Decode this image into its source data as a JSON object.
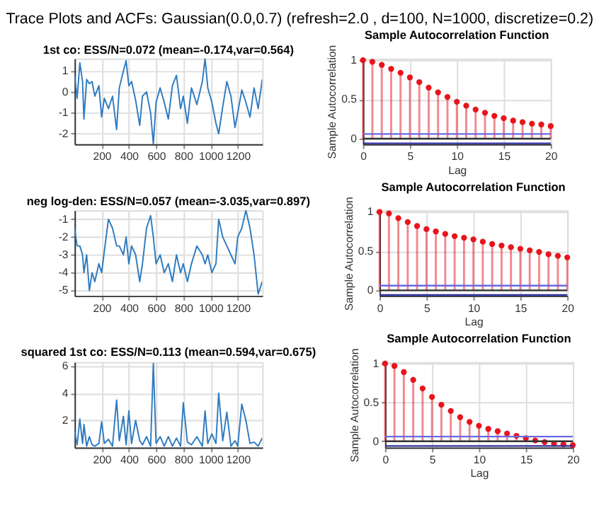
{
  "chart_data": [
    {
      "type": "other",
      "title": "Trace Plots and ACFs: Gaussian(0.0,0.7) (refresh=2.0 , d=100, N=1000, discretize=0.2)"
    },
    {
      "type": "line",
      "title": "1st co: ESS/N=0.072 (mean=-0.174,var=0.564)",
      "xlim": [
        1,
        1380
      ],
      "xticks": [
        200,
        400,
        600,
        800,
        1000,
        1200
      ],
      "ylim": [
        -2.5,
        1.6
      ],
      "yticks": [
        -2,
        -1,
        0,
        1
      ],
      "grid": true,
      "x": [
        1,
        20,
        40,
        60,
        70,
        90,
        110,
        130,
        150,
        180,
        200,
        220,
        250,
        280,
        310,
        330,
        360,
        380,
        400,
        420,
        450,
        480,
        500,
        530,
        560,
        580,
        600,
        630,
        660,
        690,
        720,
        750,
        780,
        800,
        830,
        860,
        900,
        940,
        960,
        980,
        1010,
        1040,
        1060,
        1090,
        1120,
        1150,
        1180,
        1200,
        1230,
        1260,
        1290,
        1320,
        1350,
        1380
      ],
      "series": [
        {
          "color": "#2f7bbf",
          "values": [
            0.8,
            -0.3,
            1.4,
            0.5,
            -1.3,
            0.6,
            0.4,
            0.5,
            -0.2,
            0.3,
            -1.2,
            -0.3,
            -0.8,
            -0.2,
            -1.8,
            0.2,
            1.0,
            1.5,
            0.3,
            0.5,
            -0.4,
            -1.6,
            -0.2,
            0.0,
            -1.0,
            -2.5,
            -0.5,
            0.2,
            -0.5,
            -1.3,
            0.3,
            0.8,
            -0.8,
            -0.2,
            -1.5,
            0.2,
            -0.6,
            0.5,
            1.6,
            0.2,
            -0.5,
            -1.5,
            -2.0,
            -0.7,
            0.5,
            -0.2,
            -1.7,
            -1.0,
            0.1,
            -0.5,
            -1.2,
            0.2,
            -0.8,
            0.6
          ]
        }
      ]
    },
    {
      "type": "lollipop",
      "title": "Sample Autocorrelation Function",
      "xlabel": "Lag",
      "ylabel": "Sample Autocorrelation",
      "xlim": [
        0,
        20
      ],
      "xticks": [
        0,
        5,
        10,
        15,
        20
      ],
      "ylim": [
        -0.07,
        1.02
      ],
      "yticks": [
        0,
        0.5,
        1
      ],
      "grid": true,
      "marker": "circle",
      "x": [
        0,
        1,
        2,
        3,
        4,
        5,
        6,
        7,
        8,
        9,
        10,
        11,
        12,
        13,
        14,
        15,
        16,
        17,
        18,
        19,
        20
      ],
      "series": [
        {
          "color": "#e8141c",
          "values": [
            1,
            0.98,
            0.94,
            0.89,
            0.84,
            0.78,
            0.72,
            0.65,
            0.59,
            0.53,
            0.47,
            0.42,
            0.37,
            0.33,
            0.29,
            0.26,
            0.23,
            0.21,
            0.19,
            0.18,
            0.16
          ]
        }
      ],
      "ref_lines": [
        {
          "axis": "y",
          "value": 0.06,
          "color": "#6a6ae0"
        },
        {
          "axis": "y",
          "value": -0.06,
          "color": "#3030a0"
        },
        {
          "axis": "y",
          "value": 0,
          "color": "#333333"
        }
      ]
    },
    {
      "type": "line",
      "title": "neg log-den: ESS/N=0.057 (mean=-3.035,var=0.897)",
      "xlim": [
        1,
        1380
      ],
      "xticks": [
        200,
        400,
        600,
        800,
        1000,
        1200
      ],
      "ylim": [
        -5.3,
        -0.5
      ],
      "yticks": [
        -5,
        -4,
        -3,
        -2,
        -1
      ],
      "grid": true,
      "x": [
        1,
        20,
        40,
        60,
        70,
        90,
        110,
        130,
        150,
        180,
        200,
        220,
        250,
        280,
        310,
        330,
        360,
        380,
        400,
        420,
        450,
        480,
        500,
        530,
        560,
        580,
        600,
        630,
        660,
        690,
        720,
        750,
        780,
        800,
        830,
        860,
        900,
        940,
        960,
        980,
        1010,
        1040,
        1060,
        1090,
        1120,
        1150,
        1180,
        1200,
        1230,
        1260,
        1290,
        1320,
        1350,
        1380
      ],
      "series": [
        {
          "color": "#2f7bbf",
          "values": [
            -1.5,
            -2.5,
            -2.5,
            -3.0,
            -4.0,
            -3.0,
            -5.0,
            -4.0,
            -4.5,
            -3.5,
            -4.0,
            -2.8,
            -1.0,
            -1.5,
            -2.5,
            -2.5,
            -3.0,
            -2.0,
            -3.5,
            -2.5,
            -3.0,
            -4.5,
            -3.5,
            -1.5,
            -0.8,
            -2.0,
            -3.5,
            -3.0,
            -4.0,
            -3.5,
            -4.5,
            -3.0,
            -4.0,
            -3.5,
            -4.5,
            -3.5,
            -2.5,
            -3.0,
            -3.5,
            -3.0,
            -4.0,
            -3.5,
            -1.0,
            -2.0,
            -2.5,
            -3.0,
            -3.5,
            -2.0,
            -1.5,
            -0.5,
            -1.5,
            -3.0,
            -5.2,
            -4.5
          ]
        }
      ]
    },
    {
      "type": "lollipop",
      "title": "Sample Autocorrelation Function",
      "xlabel": "Lag",
      "ylabel": "Sample Autocorrelation",
      "xlim": [
        0,
        20
      ],
      "xticks": [
        0,
        5,
        10,
        15,
        20
      ],
      "ylim": [
        -0.07,
        1.02
      ],
      "yticks": [
        0,
        0.5,
        1
      ],
      "grid": true,
      "marker": "circle",
      "x": [
        0,
        1,
        2,
        3,
        4,
        5,
        6,
        7,
        8,
        9,
        10,
        11,
        12,
        13,
        14,
        15,
        16,
        17,
        18,
        19,
        20
      ],
      "series": [
        {
          "color": "#e8141c",
          "values": [
            1,
            0.98,
            0.92,
            0.87,
            0.82,
            0.78,
            0.75,
            0.72,
            0.69,
            0.67,
            0.65,
            0.62,
            0.59,
            0.57,
            0.55,
            0.53,
            0.51,
            0.49,
            0.46,
            0.44,
            0.42
          ]
        }
      ],
      "ref_lines": [
        {
          "axis": "y",
          "value": 0.06,
          "color": "#6a6ae0"
        },
        {
          "axis": "y",
          "value": -0.06,
          "color": "#3030a0"
        },
        {
          "axis": "y",
          "value": 0,
          "color": "#333333"
        }
      ]
    },
    {
      "type": "line",
      "title": "squared 1st co: ESS/N=0.113 (mean=0.594,var=0.675)",
      "xlim": [
        1,
        1380
      ],
      "xticks": [
        200,
        400,
        600,
        800,
        1000,
        1200
      ],
      "ylim": [
        0,
        6.3
      ],
      "yticks": [
        2,
        4,
        6
      ],
      "grid": true,
      "x": [
        1,
        20,
        40,
        60,
        70,
        90,
        110,
        130,
        150,
        180,
        200,
        220,
        250,
        280,
        310,
        330,
        360,
        380,
        400,
        420,
        450,
        480,
        500,
        530,
        560,
        580,
        600,
        630,
        660,
        690,
        720,
        750,
        780,
        800,
        830,
        860,
        900,
        940,
        960,
        980,
        1010,
        1040,
        1060,
        1090,
        1120,
        1150,
        1180,
        1200,
        1230,
        1260,
        1290,
        1320,
        1350,
        1380
      ],
      "series": [
        {
          "color": "#2f7bbf",
          "values": [
            1.2,
            0.2,
            2.1,
            0.3,
            1.7,
            0.1,
            0.8,
            0.2,
            0.1,
            0.3,
            1.9,
            0.3,
            0.6,
            0.1,
            3.5,
            0.5,
            2.3,
            0.2,
            2.7,
            0.3,
            2.0,
            0.5,
            0.2,
            0.8,
            0.1,
            6.2,
            0.3,
            0.8,
            0.1,
            0.8,
            0.1,
            0.7,
            0.1,
            3.3,
            0.4,
            0.2,
            0.8,
            0.1,
            2.7,
            0.3,
            1.0,
            0.3,
            4.0,
            0.5,
            2.6,
            0.1,
            0.5,
            0.1,
            3.2,
            2.0,
            0.3,
            0.4,
            0.1,
            0.7
          ]
        }
      ]
    },
    {
      "type": "lollipop",
      "title": "Sample Autocorrelation Function",
      "xlabel": "Lag",
      "ylabel": "Sample Autocorrelation",
      "xlim": [
        0,
        20
      ],
      "xticks": [
        0,
        5,
        10,
        15,
        20
      ],
      "ylim": [
        -0.08,
        1.02
      ],
      "yticks": [
        0,
        0.5,
        1
      ],
      "grid": true,
      "marker": "circle",
      "x": [
        0,
        1,
        2,
        3,
        4,
        5,
        6,
        7,
        8,
        9,
        10,
        11,
        12,
        13,
        14,
        15,
        16,
        17,
        18,
        19,
        20
      ],
      "series": [
        {
          "color": "#e8141c",
          "values": [
            1,
            0.97,
            0.89,
            0.79,
            0.68,
            0.57,
            0.47,
            0.39,
            0.31,
            0.25,
            0.2,
            0.16,
            0.13,
            0.1,
            0.07,
            0.04,
            0.01,
            -0.01,
            -0.03,
            -0.04,
            -0.05
          ]
        }
      ],
      "ref_lines": [
        {
          "axis": "y",
          "value": 0.06,
          "color": "#6a6ae0"
        },
        {
          "axis": "y",
          "value": -0.06,
          "color": "#3030a0"
        },
        {
          "axis": "y",
          "value": 0,
          "color": "#333333"
        }
      ]
    }
  ]
}
